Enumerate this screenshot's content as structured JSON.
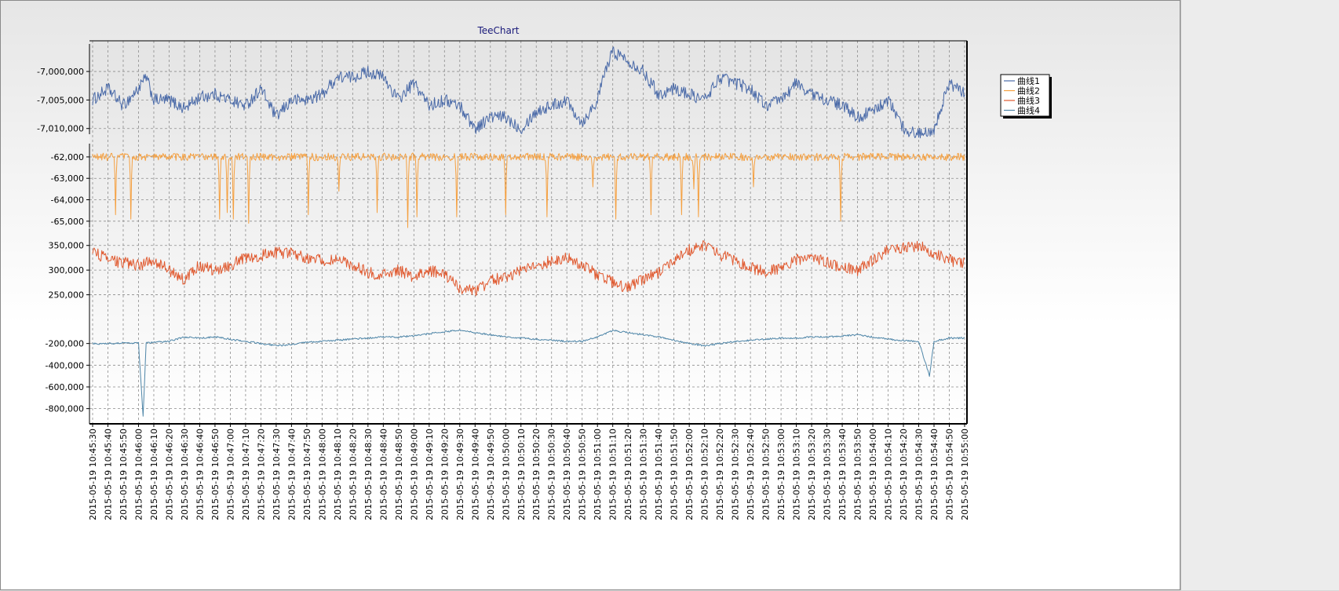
{
  "chart_data": {
    "type": "line",
    "title": "TeeChart",
    "xlabel": "",
    "ylabel": "",
    "legend_placement": "right",
    "grid": true,
    "x_tick_labels": [
      "2015-05-19 10:45:30",
      "2015-05-19 10:45:40",
      "2015-05-19 10:45:50",
      "2015-05-19 10:46:00",
      "2015-05-19 10:46:10",
      "2015-05-19 10:46:20",
      "2015-05-19 10:46:30",
      "2015-05-19 10:46:40",
      "2015-05-19 10:46:50",
      "2015-05-19 10:47:00",
      "2015-05-19 10:47:10",
      "2015-05-19 10:47:20",
      "2015-05-19 10:47:30",
      "2015-05-19 10:47:40",
      "2015-05-19 10:47:50",
      "2015-05-19 10:48:00",
      "2015-05-19 10:48:10",
      "2015-05-19 10:48:20",
      "2015-05-19 10:48:30",
      "2015-05-19 10:48:40",
      "2015-05-19 10:48:50",
      "2015-05-19 10:49:00",
      "2015-05-19 10:49:10",
      "2015-05-19 10:49:20",
      "2015-05-19 10:49:30",
      "2015-05-19 10:49:40",
      "2015-05-19 10:49:50",
      "2015-05-19 10:50:00",
      "2015-05-19 10:50:10",
      "2015-05-19 10:50:20",
      "2015-05-19 10:50:30",
      "2015-05-19 10:50:40",
      "2015-05-19 10:50:50",
      "2015-05-19 10:51:00",
      "2015-05-19 10:51:10",
      "2015-05-19 10:51:20",
      "2015-05-19 10:51:30",
      "2015-05-19 10:51:40",
      "2015-05-19 10:51:50",
      "2015-05-19 10:52:00",
      "2015-05-19 10:52:10",
      "2015-05-19 10:52:20",
      "2015-05-19 10:52:30",
      "2015-05-19 10:52:40",
      "2015-05-19 10:52:50",
      "2015-05-19 10:53:00",
      "2015-05-19 10:53:10",
      "2015-05-19 10:53:20",
      "2015-05-19 10:53:30",
      "2015-05-19 10:53:40",
      "2015-05-19 10:53:50",
      "2015-05-19 10:54:00",
      "2015-05-19 10:54:10",
      "2015-05-19 10:54:20",
      "2015-05-19 10:54:30",
      "2015-05-19 10:54:40",
      "2015-05-19 10:54:50",
      "2015-05-19 10:55:00"
    ],
    "x_range": [
      "2015-05-19 10:45:30",
      "2015-05-19 10:55:00"
    ],
    "panels": [
      {
        "series": "曲线1",
        "ylim": [
          -7011000,
          -6996000
        ],
        "tick_labels": [
          "-7,000,000",
          "-7,005,000",
          "-7,010,000"
        ],
        "tick_values": [
          -7000000,
          -7005000,
          -7010000
        ]
      },
      {
        "series": "曲线2",
        "ylim": [
          -65300,
          -61600
        ],
        "tick_labels": [
          "-62,000",
          "-63,000",
          "-64,000",
          "-65,000"
        ],
        "tick_values": [
          -62000,
          -63000,
          -64000,
          -65000
        ]
      },
      {
        "series": "曲线3",
        "ylim": [
          200000,
          375000
        ],
        "tick_labels": [
          "350,000",
          "300,000",
          "250,000"
        ],
        "tick_values": [
          350000,
          300000,
          250000
        ]
      },
      {
        "series": "曲线4",
        "ylim": [
          -940000,
          0
        ],
        "tick_labels": [
          "-200,000",
          "-400,000",
          "-600,000",
          "-800,000"
        ],
        "tick_values": [
          -200000,
          -400000,
          -600000,
          -800000
        ]
      }
    ],
    "series": [
      {
        "name": "曲线1",
        "color": "#4a6aa8",
        "keypoints": [
          [
            "10:45:30",
            -7005000
          ],
          [
            "10:45:40",
            -7003000
          ],
          [
            "10:45:50",
            -7006000
          ],
          [
            "10:46:00",
            -7003000
          ],
          [
            "10:46:05",
            -7001000
          ],
          [
            "10:46:10",
            -7005000
          ],
          [
            "10:46:20",
            -7005000
          ],
          [
            "10:46:30",
            -7006500
          ],
          [
            "10:46:40",
            -7004500
          ],
          [
            "10:46:50",
            -7004000
          ],
          [
            "10:47:00",
            -7005000
          ],
          [
            "10:47:10",
            -7006000
          ],
          [
            "10:47:20",
            -7003000
          ],
          [
            "10:47:30",
            -7008000
          ],
          [
            "10:47:40",
            -7005000
          ],
          [
            "10:47:50",
            -7005000
          ],
          [
            "10:48:00",
            -7004000
          ],
          [
            "10:48:10",
            -7001000
          ],
          [
            "10:48:20",
            -7001000
          ],
          [
            "10:48:30",
            -7000000
          ],
          [
            "10:48:40",
            -7001000
          ],
          [
            "10:48:50",
            -7005000
          ],
          [
            "10:49:00",
            -7002000
          ],
          [
            "10:49:10",
            -7006000
          ],
          [
            "10:49:20",
            -7005000
          ],
          [
            "10:49:30",
            -7006000
          ],
          [
            "10:49:40",
            -7010000
          ],
          [
            "10:49:50",
            -7008000
          ],
          [
            "10:50:00",
            -7008000
          ],
          [
            "10:50:10",
            -7010000
          ],
          [
            "10:50:20",
            -7007000
          ],
          [
            "10:50:30",
            -7006000
          ],
          [
            "10:50:40",
            -7005000
          ],
          [
            "10:50:50",
            -7009000
          ],
          [
            "10:51:00",
            -7005000
          ],
          [
            "10:51:05",
            -7000000
          ],
          [
            "10:51:10",
            -6996500
          ],
          [
            "10:51:20",
            -6998000
          ],
          [
            "10:51:30",
            -7000000
          ],
          [
            "10:51:40",
            -7004000
          ],
          [
            "10:51:50",
            -7003000
          ],
          [
            "10:52:00",
            -7004000
          ],
          [
            "10:52:10",
            -7005000
          ],
          [
            "10:52:20",
            -7001000
          ],
          [
            "10:52:30",
            -7002000
          ],
          [
            "10:52:40",
            -7003000
          ],
          [
            "10:52:50",
            -7006000
          ],
          [
            "10:53:00",
            -7005000
          ],
          [
            "10:53:10",
            -7002000
          ],
          [
            "10:53:20",
            -7004000
          ],
          [
            "10:53:30",
            -7005000
          ],
          [
            "10:53:40",
            -7006000
          ],
          [
            "10:53:50",
            -7008000
          ],
          [
            "10:54:00",
            -7007000
          ],
          [
            "10:54:10",
            -7005000
          ],
          [
            "10:54:20",
            -7010000
          ],
          [
            "10:54:30",
            -7011000
          ],
          [
            "10:54:40",
            -7010000
          ],
          [
            "10:54:50",
            -7002000
          ],
          [
            "10:55:00",
            -7004000
          ]
        ]
      },
      {
        "name": "曲线2",
        "color": "#f5a040",
        "baseline": -62000,
        "spikes": [
          [
            "10:45:45",
            -64700
          ],
          [
            "10:45:55",
            -64900
          ],
          [
            "10:46:53",
            -64900
          ],
          [
            "10:46:58",
            -64600
          ],
          [
            "10:47:02",
            -64900
          ],
          [
            "10:47:12",
            -65100
          ],
          [
            "10:47:51",
            -64700
          ],
          [
            "10:48:11",
            -63600
          ],
          [
            "10:48:36",
            -64600
          ],
          [
            "10:48:56",
            -65300
          ],
          [
            "10:49:02",
            -64800
          ],
          [
            "10:49:28",
            -64800
          ],
          [
            "10:50:00",
            -64700
          ],
          [
            "10:50:27",
            -64800
          ],
          [
            "10:50:57",
            -63400
          ],
          [
            "10:51:12",
            -64900
          ],
          [
            "10:51:35",
            -64700
          ],
          [
            "10:51:55",
            -64700
          ],
          [
            "10:52:03",
            -63500
          ],
          [
            "10:52:06",
            -64800
          ],
          [
            "10:52:42",
            -63400
          ],
          [
            "10:53:39",
            -65000
          ]
        ]
      },
      {
        "name": "曲线3",
        "color": "#e05a30",
        "keypoints": [
          [
            "10:45:30",
            340000
          ],
          [
            "10:45:40",
            320000
          ],
          [
            "10:45:50",
            315000
          ],
          [
            "10:46:00",
            310000
          ],
          [
            "10:46:10",
            320000
          ],
          [
            "10:46:20",
            300000
          ],
          [
            "10:46:30",
            280000
          ],
          [
            "10:46:40",
            310000
          ],
          [
            "10:46:50",
            300000
          ],
          [
            "10:47:00",
            310000
          ],
          [
            "10:47:10",
            325000
          ],
          [
            "10:47:20",
            330000
          ],
          [
            "10:47:30",
            335000
          ],
          [
            "10:47:40",
            335000
          ],
          [
            "10:47:50",
            325000
          ],
          [
            "10:48:00",
            320000
          ],
          [
            "10:48:10",
            320000
          ],
          [
            "10:48:20",
            310000
          ],
          [
            "10:48:30",
            295000
          ],
          [
            "10:48:40",
            290000
          ],
          [
            "10:48:50",
            300000
          ],
          [
            "10:49:00",
            285000
          ],
          [
            "10:49:10",
            300000
          ],
          [
            "10:49:20",
            290000
          ],
          [
            "10:49:30",
            265000
          ],
          [
            "10:49:40",
            255000
          ],
          [
            "10:49:50",
            280000
          ],
          [
            "10:50:00",
            285000
          ],
          [
            "10:50:10",
            300000
          ],
          [
            "10:50:20",
            305000
          ],
          [
            "10:50:30",
            320000
          ],
          [
            "10:50:40",
            325000
          ],
          [
            "10:50:50",
            310000
          ],
          [
            "10:51:00",
            290000
          ],
          [
            "10:51:10",
            275000
          ],
          [
            "10:51:20",
            265000
          ],
          [
            "10:51:30",
            280000
          ],
          [
            "10:51:40",
            295000
          ],
          [
            "10:51:50",
            320000
          ],
          [
            "10:52:00",
            340000
          ],
          [
            "10:52:10",
            350000
          ],
          [
            "10:52:20",
            330000
          ],
          [
            "10:52:30",
            320000
          ],
          [
            "10:52:40",
            305000
          ],
          [
            "10:52:50",
            295000
          ],
          [
            "10:53:00",
            305000
          ],
          [
            "10:53:10",
            320000
          ],
          [
            "10:53:20",
            330000
          ],
          [
            "10:53:30",
            315000
          ],
          [
            "10:53:40",
            305000
          ],
          [
            "10:53:50",
            300000
          ],
          [
            "10:54:00",
            320000
          ],
          [
            "10:54:10",
            340000
          ],
          [
            "10:54:20",
            345000
          ],
          [
            "10:54:30",
            350000
          ],
          [
            "10:54:40",
            335000
          ],
          [
            "10:54:50",
            320000
          ],
          [
            "10:55:00",
            315000
          ]
        ]
      },
      {
        "name": "曲线4",
        "color": "#4f86a8",
        "keypoints": [
          [
            "10:45:30",
            -200000
          ],
          [
            "10:45:40",
            -200000
          ],
          [
            "10:45:50",
            -195000
          ],
          [
            "10:46:00",
            -195000
          ],
          [
            "10:46:03",
            -870000
          ],
          [
            "10:46:05",
            -195000
          ],
          [
            "10:46:10",
            -190000
          ],
          [
            "10:46:20",
            -180000
          ],
          [
            "10:46:30",
            -140000
          ],
          [
            "10:46:40",
            -150000
          ],
          [
            "10:46:50",
            -140000
          ],
          [
            "10:47:00",
            -160000
          ],
          [
            "10:47:10",
            -180000
          ],
          [
            "10:47:20",
            -200000
          ],
          [
            "10:47:30",
            -220000
          ],
          [
            "10:47:40",
            -210000
          ],
          [
            "10:47:50",
            -190000
          ],
          [
            "10:48:00",
            -180000
          ],
          [
            "10:48:10",
            -170000
          ],
          [
            "10:48:20",
            -160000
          ],
          [
            "10:48:30",
            -150000
          ],
          [
            "10:48:40",
            -140000
          ],
          [
            "10:48:50",
            -140000
          ],
          [
            "10:49:00",
            -130000
          ],
          [
            "10:49:10",
            -110000
          ],
          [
            "10:49:20",
            -90000
          ],
          [
            "10:49:30",
            -80000
          ],
          [
            "10:49:40",
            -100000
          ],
          [
            "10:49:50",
            -120000
          ],
          [
            "10:50:00",
            -140000
          ],
          [
            "10:50:10",
            -150000
          ],
          [
            "10:50:20",
            -160000
          ],
          [
            "10:50:30",
            -170000
          ],
          [
            "10:50:40",
            -180000
          ],
          [
            "10:50:50",
            -180000
          ],
          [
            "10:51:00",
            -140000
          ],
          [
            "10:51:10",
            -80000
          ],
          [
            "10:51:20",
            -100000
          ],
          [
            "10:51:30",
            -120000
          ],
          [
            "10:51:40",
            -140000
          ],
          [
            "10:51:50",
            -170000
          ],
          [
            "10:52:00",
            -200000
          ],
          [
            "10:52:10",
            -220000
          ],
          [
            "10:52:20",
            -200000
          ],
          [
            "10:52:30",
            -180000
          ],
          [
            "10:52:40",
            -170000
          ],
          [
            "10:52:50",
            -160000
          ],
          [
            "10:53:00",
            -150000
          ],
          [
            "10:53:10",
            -150000
          ],
          [
            "10:53:20",
            -140000
          ],
          [
            "10:53:30",
            -140000
          ],
          [
            "10:53:40",
            -130000
          ],
          [
            "10:53:50",
            -120000
          ],
          [
            "10:54:00",
            -140000
          ],
          [
            "10:54:10",
            -160000
          ],
          [
            "10:54:20",
            -175000
          ],
          [
            "10:54:30",
            -180000
          ],
          [
            "10:54:37",
            -500000
          ],
          [
            "10:54:40",
            -180000
          ],
          [
            "10:54:50",
            -150000
          ],
          [
            "10:55:00",
            -150000
          ]
        ]
      }
    ]
  }
}
